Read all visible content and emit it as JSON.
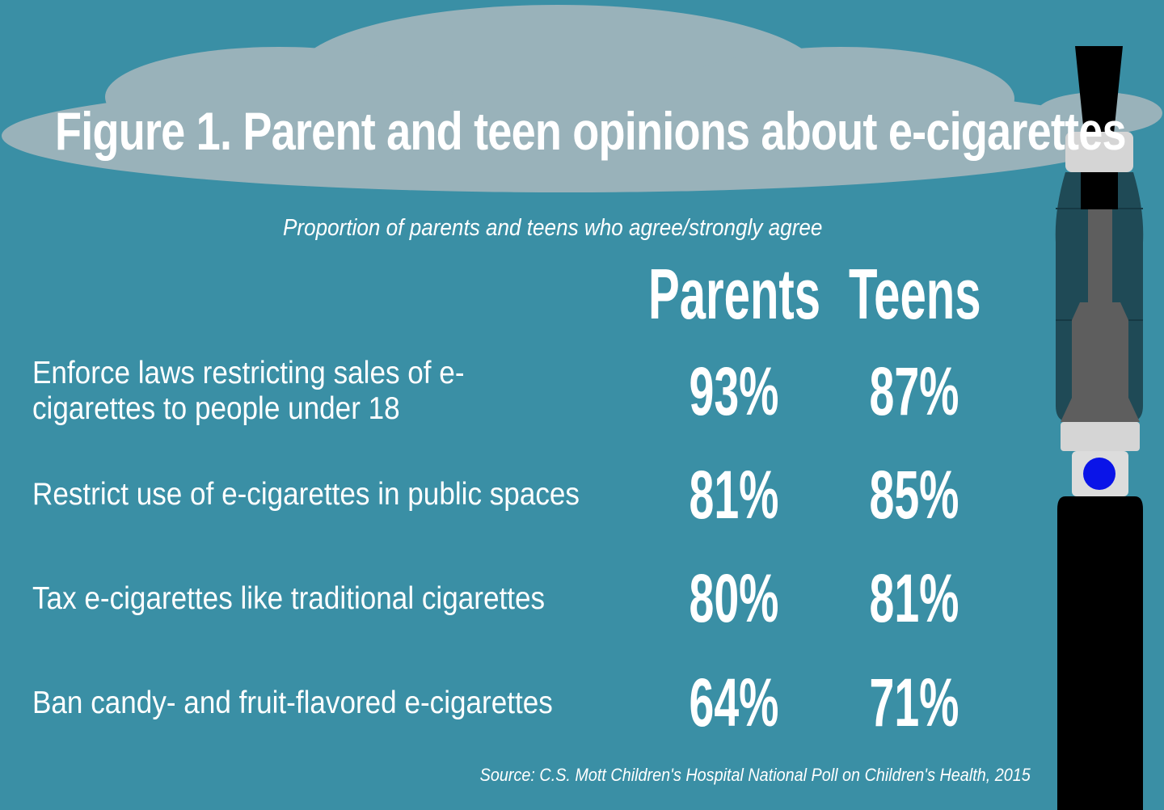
{
  "colors": {
    "background": "#3a8fa5",
    "cloud": "#99b2ba",
    "text": "#ffffff",
    "pen_body": "#000000",
    "pen_tank": "#1f4a56",
    "pen_button": "#0a14e8"
  },
  "chart_data": {
    "type": "table",
    "title": "Figure 1. Parent and teen opinions about e-cigarettes",
    "subtitle": "Proportion of parents and teens who agree/strongly agree",
    "columns": [
      "Parents",
      "Teens"
    ],
    "rows": [
      {
        "label": "Enforce laws restricting sales of e-cigarettes to people under 18",
        "parents": "93%",
        "teens": "87%"
      },
      {
        "label": "Restrict use of e-cigarettes in public spaces",
        "parents": "81%",
        "teens": "85%"
      },
      {
        "label": "Tax e-cigarettes like traditional cigarettes",
        "parents": "80%",
        "teens": "81%"
      },
      {
        "label": "Ban candy- and fruit-flavored e-cigarettes",
        "parents": "64%",
        "teens": "71%"
      }
    ],
    "source": "Source: C.S. Mott Children's Hospital National Poll on Children's Health, 2015"
  },
  "decor": {
    "icon": "e-cigarette-icon",
    "cloud_icon": "cloud-icon"
  }
}
